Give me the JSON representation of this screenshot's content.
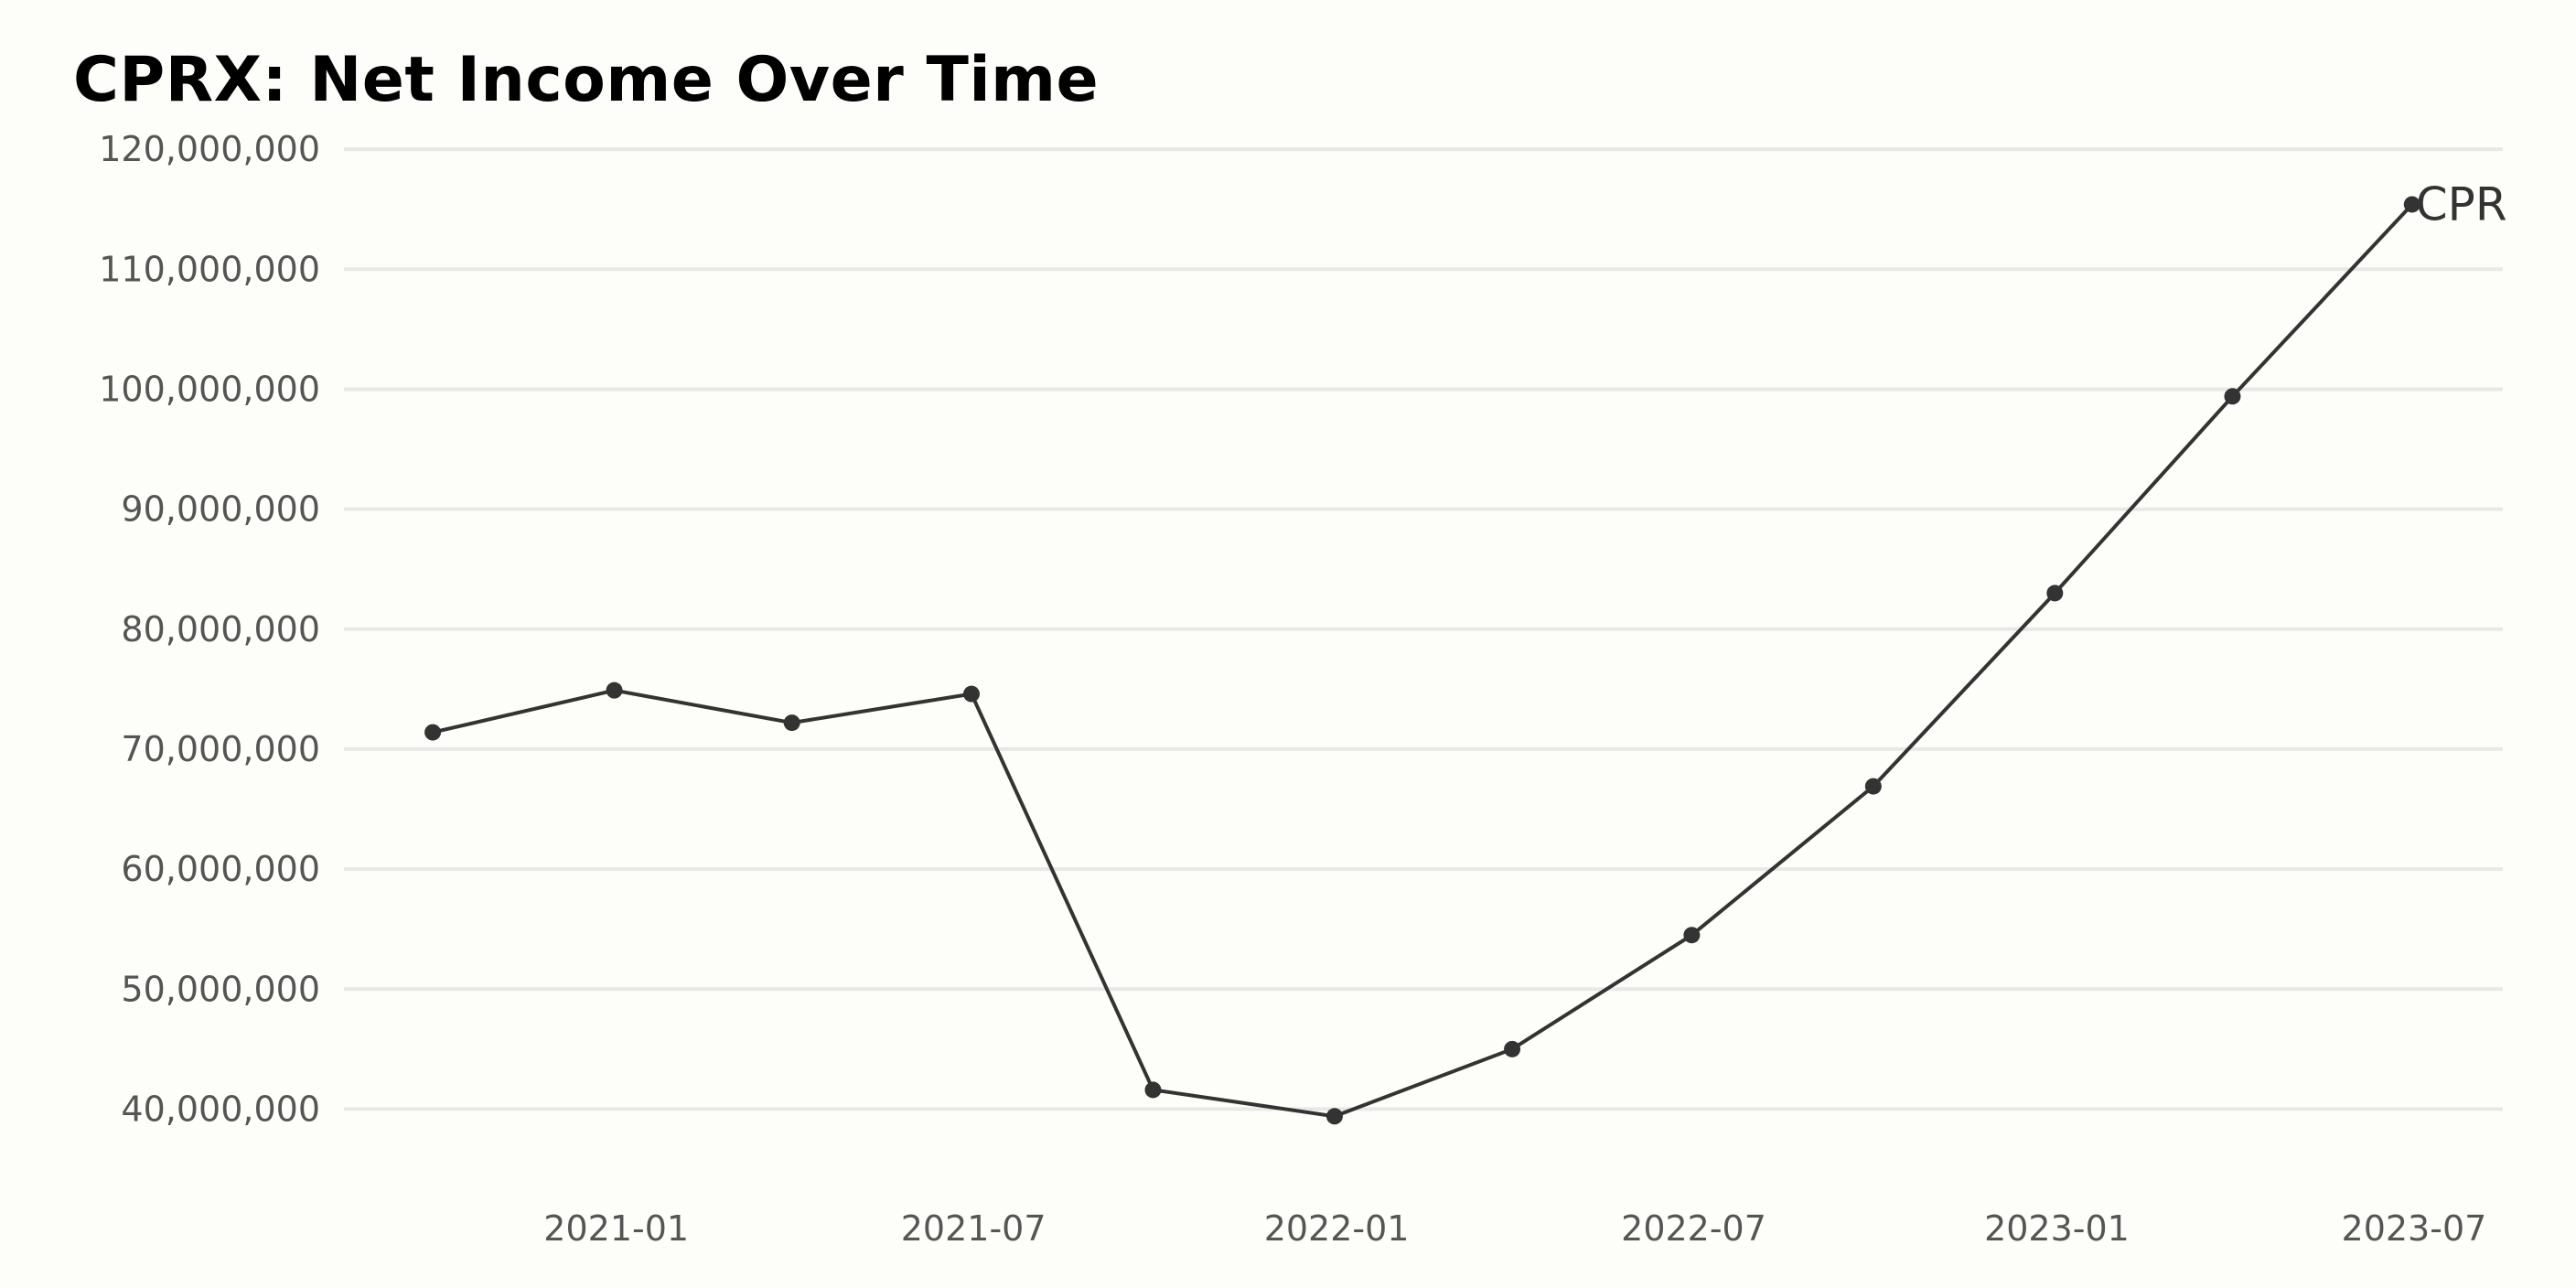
{
  "chart_data": {
    "type": "line",
    "title": "CPRX: Net Income Over Time",
    "xlabel": "",
    "ylabel": "",
    "ylim": [
      35000000,
      121000000
    ],
    "yticks": [
      40000000,
      50000000,
      60000000,
      70000000,
      80000000,
      90000000,
      100000000,
      110000000,
      120000000
    ],
    "ytick_labels": [
      "40,000,000",
      "50,000,000",
      "60,000,000",
      "70,000,000",
      "80,000,000",
      "90,000,000",
      "100,000,000",
      "110,000,000",
      "120,000,000"
    ],
    "xlim": [
      "2020-08-16",
      "2023-08-15"
    ],
    "xticks": [
      "2021-01-01",
      "2021-07-01",
      "2022-01-01",
      "2022-07-01",
      "2023-01-01",
      "2023-07-01"
    ],
    "xtick_labels": [
      "2021-01",
      "2021-07",
      "2022-01",
      "2022-07",
      "2023-01",
      "2023-07"
    ],
    "grid": "horizontal",
    "series": [
      {
        "name": "CPR",
        "color": "#333333",
        "x": [
          "2020-09-30",
          "2020-12-31",
          "2021-03-31",
          "2021-06-30",
          "2021-09-30",
          "2021-12-31",
          "2022-03-31",
          "2022-06-30",
          "2022-09-30",
          "2022-12-31",
          "2023-03-31",
          "2023-06-30"
        ],
        "y": [
          71400000,
          74900000,
          72200000,
          74600000,
          41600000,
          39400000,
          45000000,
          54500000,
          66900000,
          83000000,
          99400000,
          115400000
        ]
      }
    ]
  }
}
